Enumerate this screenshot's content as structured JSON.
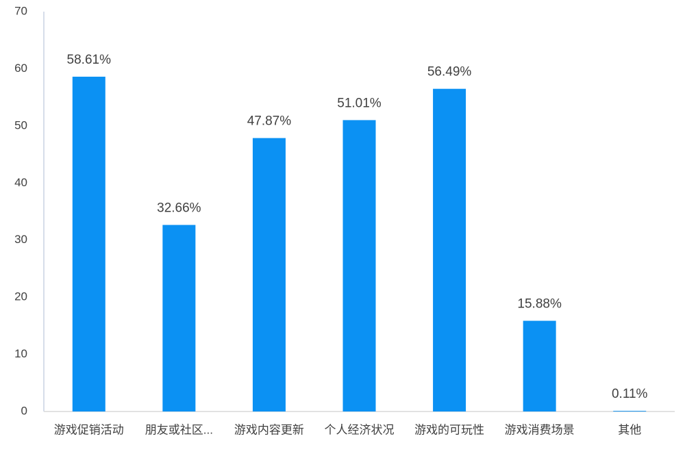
{
  "chart_data": {
    "type": "bar",
    "categories": [
      "游戏促销活动",
      "朋友或社区...",
      "游戏内容更新",
      "个人经济状况",
      "游戏的可玩性",
      "游戏消费场景",
      "其他"
    ],
    "values": [
      58.61,
      32.66,
      47.87,
      51.01,
      56.49,
      15.88,
      0.11
    ],
    "value_labels": [
      "58.61%",
      "32.66%",
      "47.87%",
      "51.01%",
      "56.49%",
      "15.88%",
      "0.11%"
    ],
    "color": "#0b91f3",
    "ylim": [
      0,
      70
    ],
    "yticks": [
      0,
      10,
      20,
      30,
      40,
      50,
      60,
      70
    ],
    "grid": false
  }
}
